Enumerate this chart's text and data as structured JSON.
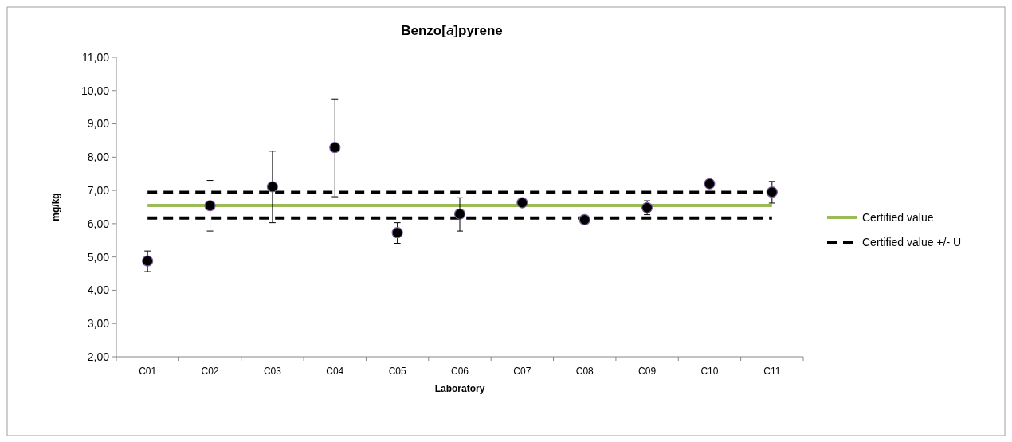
{
  "chart_data": {
    "type": "line",
    "title": "Benzo[a]pyrene",
    "xlabel": "Laboratory",
    "ylabel": "mg/kg",
    "categories": [
      "C01",
      "C02",
      "C03",
      "C04",
      "C05",
      "C06",
      "C07",
      "C08",
      "C09",
      "C10",
      "C11"
    ],
    "ylim": [
      2,
      11
    ],
    "yticks": [
      {
        "value": 2,
        "label": "2,00"
      },
      {
        "value": 3,
        "label": "3,00"
      },
      {
        "value": 4,
        "label": "4,00"
      },
      {
        "value": 5,
        "label": "5,00"
      },
      {
        "value": 6,
        "label": "6,00"
      },
      {
        "value": 7,
        "label": "7,00"
      },
      {
        "value": 8,
        "label": "8,00"
      },
      {
        "value": 9,
        "label": "9,00"
      },
      {
        "value": 10,
        "label": "10,00"
      },
      {
        "value": 11,
        "label": "11,00"
      }
    ],
    "grid": false,
    "legend": "right",
    "marker": "none",
    "series": [
      {
        "name": "Certified value",
        "color": "#9bbb59",
        "line_style": "solid",
        "values": [
          6.55,
          6.55,
          6.55,
          6.55,
          6.55,
          6.55,
          6.55,
          6.55,
          6.55,
          6.55,
          6.55
        ]
      },
      {
        "name": "Certified value +/- U",
        "color": "#000000",
        "line_style": "dashed",
        "values": [
          6.94,
          6.94,
          6.94,
          6.94,
          6.94,
          6.94,
          6.94,
          6.94,
          6.94,
          6.94,
          6.94
        ]
      },
      {
        "color": "#000000",
        "line_style": "dashed",
        "values": [
          6.17,
          6.17,
          6.17,
          6.17,
          6.17,
          6.17,
          6.17,
          6.17,
          6.17,
          6.17,
          6.17
        ]
      },
      {
        "type": "scatter",
        "marker": "circle",
        "color": "#000000",
        "values": [
          4.88,
          6.54,
          7.11,
          8.29,
          5.73,
          6.29,
          6.63,
          6.12,
          6.48,
          7.2,
          6.95
        ],
        "errors": [
          [
            4.56,
            5.18
          ],
          [
            5.78,
            7.3
          ],
          [
            6.03,
            8.18
          ],
          [
            6.81,
            9.75
          ],
          [
            5.41,
            6.03
          ],
          [
            5.78,
            6.78
          ],
          null,
          null,
          [
            6.27,
            6.69
          ],
          null,
          [
            6.62,
            7.27
          ]
        ]
      }
    ]
  }
}
